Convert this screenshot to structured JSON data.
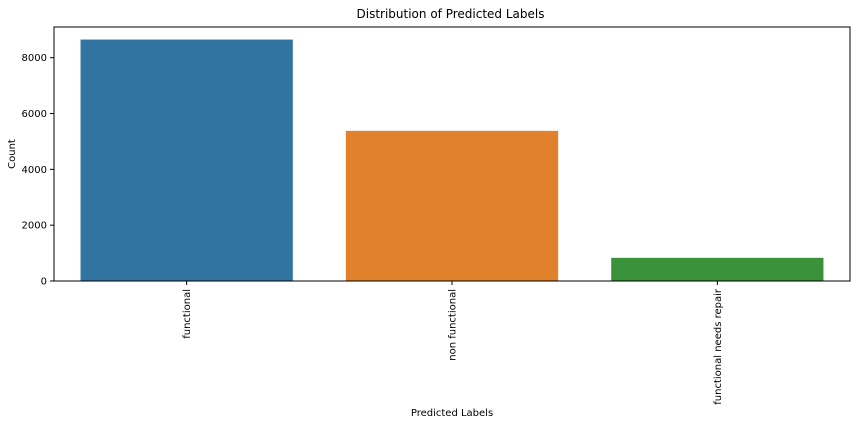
{
  "chart_data": {
    "type": "bar",
    "title": "Distribution of Predicted Labels",
    "xlabel": "Predicted Labels",
    "ylabel": "Count",
    "categories": [
      "functional",
      "non functional",
      "functional needs repair"
    ],
    "values": [
      8650,
      5380,
      830
    ],
    "colors": [
      "#3274a1",
      "#e1812c",
      "#3a923a"
    ],
    "ylim": [
      0,
      9100
    ],
    "yticks": [
      0,
      2000,
      4000,
      6000,
      8000
    ],
    "ytick_labels": [
      "0",
      "2000",
      "4000",
      "6000",
      "8000"
    ],
    "grid": false,
    "legend": "none",
    "xtick_rotation": "vertical"
  }
}
